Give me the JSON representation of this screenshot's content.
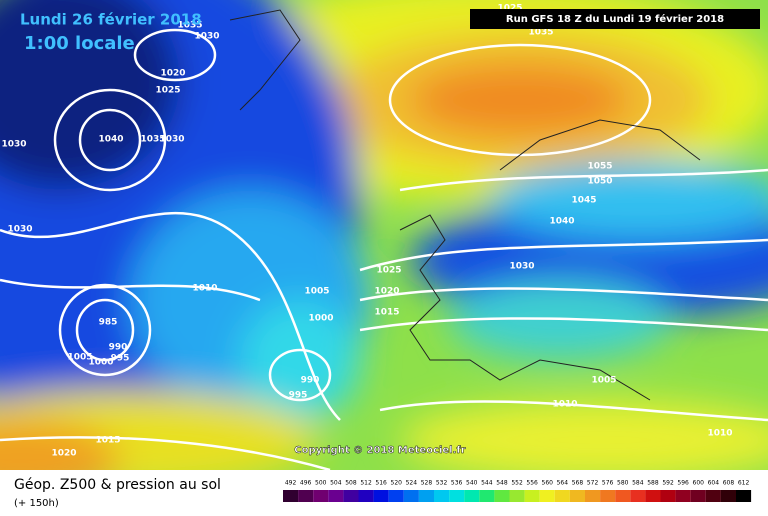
{
  "header": {
    "date": "Lundi 26 février 2018",
    "time": "1:00 locale",
    "run": "Run GFS 18 Z du Lundi 19 février 2018"
  },
  "isobar_labels": [
    "1035",
    "1030",
    "1020",
    "1025",
    "1040",
    "1035",
    "1030",
    "1030",
    "1030",
    "1010",
    "985",
    "990",
    "1005",
    "1000",
    "995",
    "1005",
    "1000",
    "990",
    "995",
    "1025",
    "1020",
    "1015",
    "1030",
    "1040",
    "1045",
    "1050",
    "1055",
    "1035",
    "1025",
    "1005",
    "1010",
    "1010",
    "1015",
    "1020"
  ],
  "copyright": "Copyright © 2018 Meteociel.fr",
  "footer": {
    "title": "Géop. Z500 & pression au sol",
    "lead": "(+ 150h)"
  },
  "legend": [
    "492",
    "496",
    "500",
    "504",
    "508",
    "512",
    "516",
    "520",
    "524",
    "528",
    "532",
    "536",
    "540",
    "544",
    "548",
    "552",
    "556",
    "560",
    "564",
    "568",
    "572",
    "576",
    "580",
    "584",
    "588",
    "592",
    "596",
    "600",
    "604",
    "608",
    "612"
  ]
}
